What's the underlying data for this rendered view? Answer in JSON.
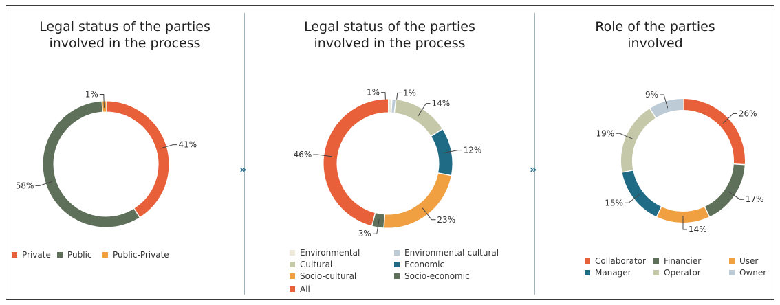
{
  "colors": {
    "private": "#e8603a",
    "public": "#5f705a",
    "public_private": "#f0a040",
    "environmental": "#ede8dc",
    "environmental_cultural": "#bccbd6",
    "cultural": "#c5c9aa",
    "economic": "#1f6a85",
    "socio_cultural": "#f0a040",
    "socio_economic": "#5f705a",
    "all": "#e8603a",
    "collaborator": "#e8603a",
    "financier": "#5f705a",
    "user": "#f0a040",
    "manager": "#1f6a85",
    "operator": "#c5c9aa",
    "owner": "#bccbd6"
  },
  "navigation": {
    "next_icon": "chevron-double-right-icon",
    "next_glyph": "»"
  },
  "chart_data": [
    {
      "type": "pie",
      "title": "Legal status of the parties involved in the process",
      "title_lines": [
        "Legal status of the parties",
        "involved in the process"
      ],
      "categories": [
        "Private",
        "Public",
        "Public-Private"
      ],
      "values": [
        41,
        58,
        1
      ],
      "value_labels": [
        "41%",
        "58%",
        "1%"
      ],
      "legend": [
        "Private",
        "Public",
        "Public-Private"
      ],
      "legend_position": "bottom",
      "donut": true
    },
    {
      "type": "pie",
      "title": "Legal status of the parties involved in the process",
      "title_lines": [
        "Legal status of the parties",
        "involved in the process"
      ],
      "categories": [
        "Environmental",
        "Environmental-cultural",
        "Cultural",
        "Economic",
        "Socio-cultural",
        "Socio-economic",
        "All"
      ],
      "values": [
        1,
        1,
        14,
        12,
        23,
        3,
        46
      ],
      "value_labels": [
        "1%",
        "1%",
        "14%",
        "12%",
        "23%",
        "3%",
        "46%"
      ],
      "legend": [
        "Environmental",
        "Environmental-cultural",
        "Cultural",
        "Economic",
        "Socio-cultural",
        "Socio-economic",
        "All"
      ],
      "legend_position": "bottom",
      "donut": true
    },
    {
      "type": "pie",
      "title": "Role of the parties involved",
      "title_lines": [
        "Role of the parties",
        "involved"
      ],
      "categories": [
        "Collaborator",
        "Financier",
        "User",
        "Manager",
        "Operator",
        "Owner"
      ],
      "values": [
        26,
        17,
        14,
        15,
        19,
        9
      ],
      "value_labels": [
        "26%",
        "17%",
        "14%",
        "15%",
        "19%",
        "9%"
      ],
      "legend": [
        "Collaborator",
        "Financier",
        "User",
        "Manager",
        "Operator",
        "Owner"
      ],
      "legend_position": "bottom",
      "donut": true
    }
  ]
}
